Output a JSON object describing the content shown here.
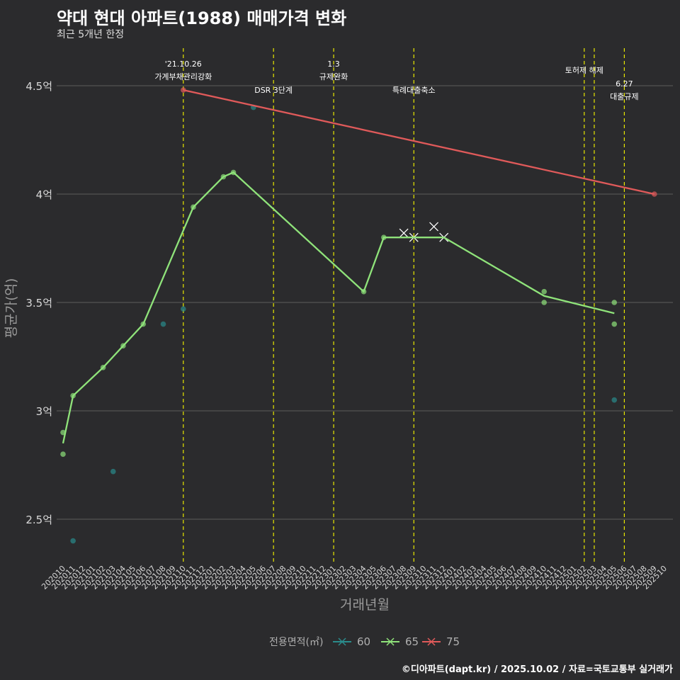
{
  "title": "약대 현대 아파트(1988) 매매가격 변화",
  "subtitle": "최근 5개년 한정",
  "caption": "©디아파트(dapt.kr) / 2025.10.02 / 자료=국토교통부 실거래가",
  "colors": {
    "background": "#2b2b2d",
    "grid": "#5c5c5c",
    "vline": "#e8e800",
    "s60": "#2a8c8c",
    "s65": "#8fe37a",
    "s75": "#e05a5a"
  },
  "chart_data": {
    "type": "line",
    "title": "약대 현대 아파트(1988) 매매가격 변화",
    "subtitle": "최근 5개년 한정",
    "xlabel": "거래년월",
    "ylabel": "평균가(억)",
    "ylim": [
      2.3,
      4.66
    ],
    "yticks": [
      2.5,
      3,
      3.5,
      4,
      4.5
    ],
    "ytick_labels": [
      "2.5억",
      "3억",
      "3.5억",
      "4억",
      "4.5억"
    ],
    "x_start": "202010",
    "x_count": 61,
    "x_labels": [
      "202010",
      "202011",
      "202012",
      "202101",
      "202102",
      "202103",
      "202104",
      "202105",
      "202106",
      "202107",
      "202108",
      "202109",
      "202110",
      "202111",
      "202112",
      "202201",
      "202202",
      "202203",
      "202204",
      "202205",
      "202206",
      "202207",
      "202208",
      "202209",
      "202210",
      "202211",
      "202212",
      "202301",
      "202302",
      "202303",
      "202304",
      "202305",
      "202306",
      "202307",
      "202308",
      "202309",
      "202310",
      "202311",
      "202312",
      "202401",
      "202402",
      "202403",
      "202404",
      "202405",
      "202406",
      "202407",
      "202408",
      "202409",
      "202410",
      "202411",
      "202412",
      "202501",
      "202502",
      "202503",
      "202504",
      "202505",
      "202506",
      "202507",
      "202508",
      "202509",
      "202510"
    ],
    "legend": {
      "title": "전용면적(㎡)",
      "entries": [
        "60",
        "65",
        "75"
      ],
      "position": "bottom"
    },
    "series": [
      {
        "name": "60",
        "color": "#2a8c8c",
        "points": [
          [
            1,
            2.4
          ],
          [
            5,
            2.72
          ],
          [
            10,
            3.4
          ],
          [
            12,
            3.47
          ],
          [
            19,
            4.4
          ],
          [
            55,
            3.05
          ]
        ],
        "line": []
      },
      {
        "name": "65",
        "color": "#8fe37a",
        "points": [
          [
            0,
            2.9
          ],
          [
            0,
            2.8
          ],
          [
            1,
            3.07
          ],
          [
            4,
            3.2
          ],
          [
            6,
            3.3
          ],
          [
            8,
            3.4
          ],
          [
            13,
            3.94
          ],
          [
            16,
            4.08
          ],
          [
            17,
            4.1
          ],
          [
            30,
            3.55
          ],
          [
            32,
            3.8
          ],
          [
            48,
            3.55
          ],
          [
            48,
            3.5
          ],
          [
            55,
            3.5
          ],
          [
            55,
            3.4
          ]
        ],
        "crosses": [
          [
            34,
            3.82
          ],
          [
            35,
            3.8
          ],
          [
            37,
            3.85
          ],
          [
            38,
            3.8
          ]
        ],
        "line": [
          [
            0,
            2.85
          ],
          [
            1,
            3.07
          ],
          [
            4,
            3.2
          ],
          [
            6,
            3.3
          ],
          [
            8,
            3.4
          ],
          [
            13,
            3.94
          ],
          [
            16,
            4.08
          ],
          [
            17,
            4.1
          ],
          [
            30,
            3.55
          ],
          [
            32,
            3.8
          ],
          [
            35,
            3.8
          ],
          [
            38,
            3.8
          ],
          [
            48,
            3.53
          ],
          [
            55,
            3.45
          ]
        ]
      },
      {
        "name": "75",
        "color": "#e05a5a",
        "points": [
          [
            12,
            4.48
          ],
          [
            59,
            4.0
          ]
        ],
        "line": [
          [
            12,
            4.48
          ],
          [
            59,
            4.0
          ]
        ]
      }
    ],
    "events": [
      {
        "x": 12,
        "line1": "'21.10.26",
        "line2": "가계부채관리강화",
        "row": "top"
      },
      {
        "x": 21,
        "line1": "",
        "line2": "DSR 3단계",
        "row": "mid"
      },
      {
        "x": 27,
        "line1": "1.3",
        "line2": "규제완화",
        "row": "top"
      },
      {
        "x": 35,
        "line1": "",
        "line2": "특례대출축소",
        "row": "mid"
      },
      {
        "x": 52,
        "line1": "",
        "line2": "토허제 해제",
        "row": "upper"
      },
      {
        "x": 53,
        "line1": "",
        "line2": "",
        "row": "none"
      },
      {
        "x": 56,
        "line1": "6.27",
        "line2": "대출규제",
        "row": "low"
      }
    ]
  }
}
